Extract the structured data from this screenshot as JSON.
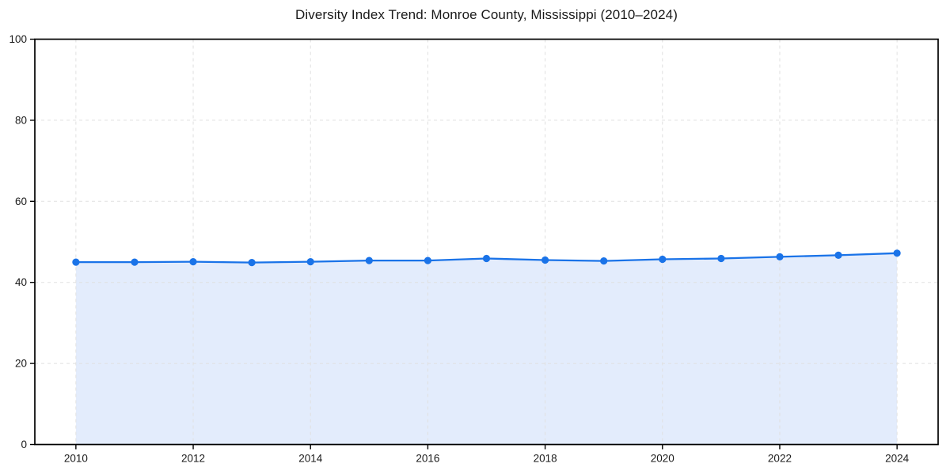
{
  "figure": {
    "background": "#ffffff"
  },
  "chart_data": {
    "type": "line",
    "title": "Diversity Index Trend: Monroe County, Mississippi (2010–2024)",
    "x": [
      2010,
      2011,
      2012,
      2013,
      2014,
      2015,
      2016,
      2017,
      2018,
      2019,
      2020,
      2021,
      2022,
      2023,
      2024
    ],
    "values": [
      45.0,
      45.0,
      45.1,
      44.9,
      45.1,
      45.4,
      45.4,
      45.9,
      45.5,
      45.3,
      45.7,
      45.9,
      46.3,
      46.7,
      47.2
    ],
    "xlabel": "",
    "ylabel": "",
    "xlim": [
      2009.3,
      2024.7
    ],
    "ylim": [
      0,
      100
    ],
    "xticks": [
      2010,
      2012,
      2014,
      2016,
      2018,
      2020,
      2022,
      2024
    ],
    "yticks": [
      0,
      20,
      40,
      60,
      80,
      100
    ],
    "grid": true,
    "grid_style": "dashed",
    "legend": false,
    "marker": "circle",
    "line_color": "#1a73e8",
    "fill_color": "#e3ecfc",
    "grid_color": "#e0e0e0",
    "axis_color": "#000000",
    "tick_label_color": "#1a1a1a"
  }
}
